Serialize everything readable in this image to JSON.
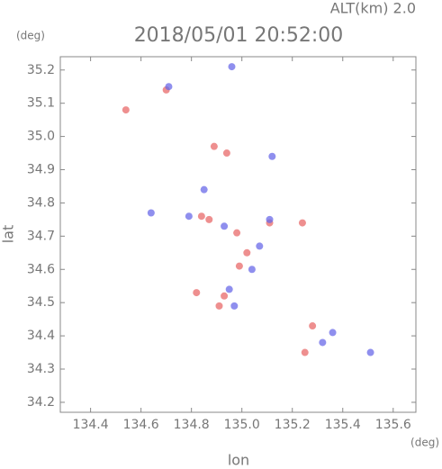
{
  "chart_data": {
    "type": "scatter",
    "title": "2018/05/01 20:52:00",
    "subtitle": "ALT(km) 2.0",
    "x_label": "lon",
    "y_label": "lat",
    "x_unit": "(deg)",
    "y_unit": "(deg)",
    "xlim": [
      134.28,
      135.69
    ],
    "ylim": [
      34.17,
      35.24
    ],
    "xticks": [
      134.4,
      134.6,
      134.8,
      {
        "value": 135.0,
        "label": "135.0"
      },
      135.2,
      135.4,
      135.6
    ],
    "yticks": [
      34.2,
      34.3,
      34.4,
      34.5,
      34.6,
      34.7,
      34.8,
      34.9,
      {
        "value": 35.0,
        "label": "35.0"
      },
      35.1,
      35.2
    ],
    "series": [
      {
        "color": "#e86a6a",
        "x": [
          134.54,
          134.7,
          134.89,
          134.94,
          134.84,
          134.87,
          134.98,
          135.02,
          134.99,
          134.93,
          134.91,
          134.82,
          135.24,
          135.28,
          135.25,
          135.11
        ],
        "y": [
          35.08,
          35.14,
          34.97,
          34.95,
          34.76,
          34.75,
          34.71,
          34.65,
          34.61,
          34.52,
          34.49,
          34.53,
          34.74,
          34.43,
          34.35,
          34.74
        ]
      },
      {
        "color": "#6a6ae8",
        "x": [
          134.71,
          135.12,
          134.85,
          134.79,
          134.93,
          135.07,
          135.04,
          134.95,
          134.97,
          135.32,
          135.36,
          135.51,
          134.64,
          135.11,
          134.96
        ],
        "y": [
          35.15,
          34.94,
          34.84,
          34.76,
          34.73,
          34.67,
          34.6,
          34.54,
          34.49,
          34.38,
          34.41,
          34.35,
          34.77,
          34.75,
          35.21
        ]
      }
    ]
  }
}
